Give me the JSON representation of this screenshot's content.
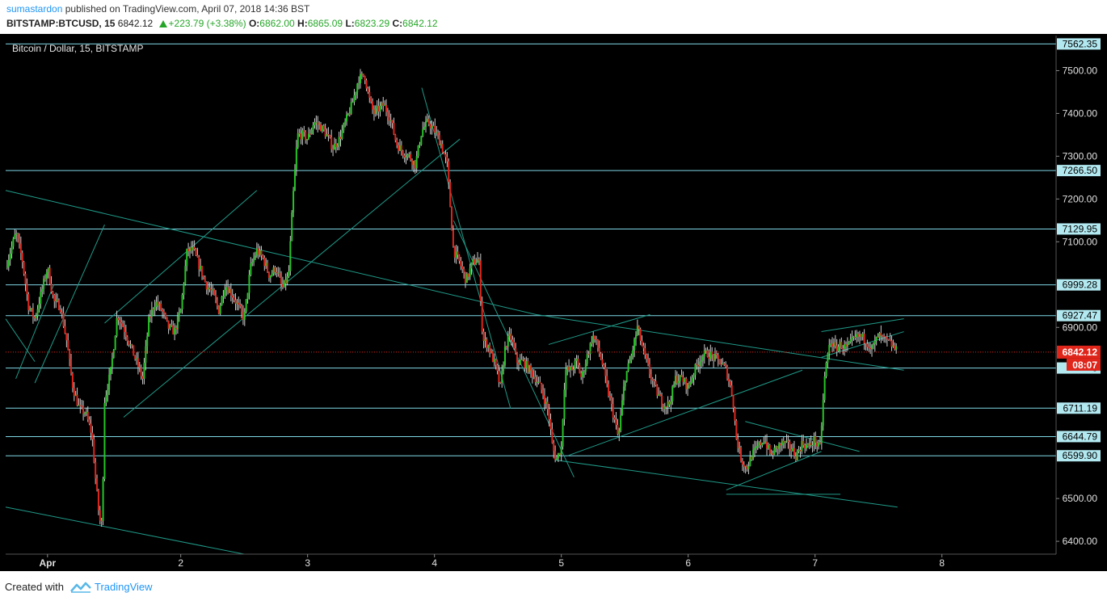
{
  "header": {
    "author": "sumastardon",
    "published_text": "published on TradingView.com, April 07, 2018 14:36 BST",
    "symbol": "BITSTAMP:BTCUSD, 15",
    "last_price": "6842.12",
    "change": "+223.79 (+3.38%)",
    "open_label": "O:",
    "open": "6862.00",
    "high_label": "H:",
    "high": "6865.09",
    "low_label": "L:",
    "low": "6823.29",
    "close_label": "C:",
    "close": "6842.12"
  },
  "footer": {
    "created_with": "Created with",
    "brand": "TradingView"
  },
  "colors": {
    "background": "#000000",
    "up": "#26c526",
    "down": "#e0251b",
    "wick": "#cccccc",
    "hline": "#7fd8e6",
    "trendline": "#1f9a88",
    "price_line": "#e0251b",
    "price_badge": "#e0251b"
  },
  "chart_data": {
    "type": "candlestick",
    "title": "Bitcoin / Dollar, 15, BITSTAMP",
    "x_ticks": [
      "Apr",
      "2",
      "3",
      "4",
      "5",
      "6",
      "7",
      "8"
    ],
    "y_ticks": [
      "7500.00",
      "7400.00",
      "7300.00",
      "7200.00",
      "7100.00",
      "6900.00",
      "6500.00",
      "6400.00"
    ],
    "ylim": [
      6370,
      7582
    ],
    "xlim_days": [
      0.62,
      8.9
    ],
    "grid": false,
    "horizontal_levels": [
      {
        "value": 7562.35,
        "label": "7562.35"
      },
      {
        "value": 7266.5,
        "label": "7266.50"
      },
      {
        "value": 7129.95,
        "label": "7129.95"
      },
      {
        "value": 6999.28,
        "label": "6999.28"
      },
      {
        "value": 6927.47,
        "label": "6927.47"
      },
      {
        "value": 6711.19,
        "label": "6711.19"
      },
      {
        "value": 6644.79,
        "label": "6644.79"
      },
      {
        "value": 6599.9,
        "label": "6599.90"
      },
      {
        "value": 6805,
        "label": "6"
      }
    ],
    "last_price": {
      "value": 6842.12,
      "label": "6842.12",
      "countdown": "08:07"
    },
    "price_path": [
      [
        0.62,
        7040
      ],
      [
        0.7,
        7120
      ],
      [
        0.75,
        7060
      ],
      [
        0.8,
        6950
      ],
      [
        0.85,
        6920
      ],
      [
        0.9,
        6980
      ],
      [
        0.95,
        7040
      ],
      [
        1.0,
        6960
      ],
      [
        1.05,
        6950
      ],
      [
        1.1,
        6870
      ],
      [
        1.15,
        6760
      ],
      [
        1.2,
        6710
      ],
      [
        1.25,
        6700
      ],
      [
        1.3,
        6650
      ],
      [
        1.33,
        6540
      ],
      [
        1.36,
        6450
      ],
      [
        1.38,
        6440
      ],
      [
        1.4,
        6730
      ],
      [
        1.45,
        6800
      ],
      [
        1.5,
        6930
      ],
      [
        1.55,
        6900
      ],
      [
        1.6,
        6860
      ],
      [
        1.65,
        6820
      ],
      [
        1.7,
        6780
      ],
      [
        1.75,
        6920
      ],
      [
        1.8,
        6960
      ],
      [
        1.85,
        6940
      ],
      [
        1.9,
        6900
      ],
      [
        1.95,
        6890
      ],
      [
        2.0,
        6940
      ],
      [
        2.05,
        7080
      ],
      [
        2.1,
        7080
      ],
      [
        2.15,
        7040
      ],
      [
        2.2,
        7000
      ],
      [
        2.25,
        6980
      ],
      [
        2.3,
        6940
      ],
      [
        2.35,
        7000
      ],
      [
        2.4,
        6980
      ],
      [
        2.45,
        6950
      ],
      [
        2.5,
        6920
      ],
      [
        2.55,
        7040
      ],
      [
        2.6,
        7080
      ],
      [
        2.65,
        7060
      ],
      [
        2.7,
        7020
      ],
      [
        2.75,
        7040
      ],
      [
        2.8,
        6990
      ],
      [
        2.85,
        7020
      ],
      [
        2.88,
        7180
      ],
      [
        2.92,
        7350
      ],
      [
        2.96,
        7350
      ],
      [
        3.0,
        7340
      ],
      [
        3.05,
        7380
      ],
      [
        3.1,
        7370
      ],
      [
        3.15,
        7350
      ],
      [
        3.2,
        7320
      ],
      [
        3.25,
        7340
      ],
      [
        3.3,
        7380
      ],
      [
        3.35,
        7420
      ],
      [
        3.4,
        7480
      ],
      [
        3.45,
        7490
      ],
      [
        3.48,
        7440
      ],
      [
        3.52,
        7400
      ],
      [
        3.56,
        7410
      ],
      [
        3.6,
        7420
      ],
      [
        3.65,
        7390
      ],
      [
        3.7,
        7330
      ],
      [
        3.75,
        7310
      ],
      [
        3.8,
        7300
      ],
      [
        3.85,
        7280
      ],
      [
        3.9,
        7360
      ],
      [
        3.95,
        7380
      ],
      [
        4.0,
        7360
      ],
      [
        4.05,
        7330
      ],
      [
        4.1,
        7280
      ],
      [
        4.12,
        7200
      ],
      [
        4.15,
        7080
      ],
      [
        4.2,
        7050
      ],
      [
        4.25,
        7010
      ],
      [
        4.3,
        7050
      ],
      [
        4.35,
        7060
      ],
      [
        4.38,
        6870
      ],
      [
        4.42,
        6860
      ],
      [
        4.48,
        6810
      ],
      [
        4.52,
        6760
      ],
      [
        4.56,
        6860
      ],
      [
        4.6,
        6880
      ],
      [
        4.65,
        6820
      ],
      [
        4.7,
        6820
      ],
      [
        4.75,
        6800
      ],
      [
        4.8,
        6780
      ],
      [
        4.85,
        6750
      ],
      [
        4.9,
        6700
      ],
      [
        4.93,
        6620
      ],
      [
        4.96,
        6590
      ],
      [
        5.0,
        6620
      ],
      [
        5.03,
        6800
      ],
      [
        5.08,
        6800
      ],
      [
        5.12,
        6820
      ],
      [
        5.16,
        6780
      ],
      [
        5.2,
        6830
      ],
      [
        5.25,
        6880
      ],
      [
        5.28,
        6860
      ],
      [
        5.32,
        6820
      ],
      [
        5.36,
        6760
      ],
      [
        5.4,
        6710
      ],
      [
        5.45,
        6640
      ],
      [
        5.5,
        6780
      ],
      [
        5.55,
        6830
      ],
      [
        5.6,
        6900
      ],
      [
        5.65,
        6840
      ],
      [
        5.7,
        6790
      ],
      [
        5.75,
        6750
      ],
      [
        5.8,
        6720
      ],
      [
        5.85,
        6720
      ],
      [
        5.9,
        6780
      ],
      [
        5.95,
        6780
      ],
      [
        6.0,
        6760
      ],
      [
        6.05,
        6800
      ],
      [
        6.1,
        6830
      ],
      [
        6.15,
        6840
      ],
      [
        6.2,
        6830
      ],
      [
        6.25,
        6820
      ],
      [
        6.3,
        6800
      ],
      [
        6.35,
        6740
      ],
      [
        6.38,
        6640
      ],
      [
        6.42,
        6590
      ],
      [
        6.46,
        6570
      ],
      [
        6.5,
        6600
      ],
      [
        6.55,
        6620
      ],
      [
        6.6,
        6640
      ],
      [
        6.65,
        6600
      ],
      [
        6.7,
        6620
      ],
      [
        6.75,
        6630
      ],
      [
        6.8,
        6620
      ],
      [
        6.85,
        6600
      ],
      [
        6.9,
        6630
      ],
      [
        6.95,
        6620
      ],
      [
        7.0,
        6640
      ],
      [
        7.02,
        6620
      ],
      [
        7.04,
        6620
      ],
      [
        7.08,
        6800
      ],
      [
        7.12,
        6870
      ],
      [
        7.16,
        6850
      ],
      [
        7.2,
        6860
      ],
      [
        7.25,
        6850
      ],
      [
        7.3,
        6870
      ],
      [
        7.35,
        6880
      ],
      [
        7.4,
        6870
      ],
      [
        7.45,
        6850
      ],
      [
        7.5,
        6880
      ],
      [
        7.55,
        6870
      ],
      [
        7.6,
        6860
      ],
      [
        7.65,
        6842
      ]
    ],
    "trendlines": [
      [
        [
          0.62,
          7220
        ],
        [
          4.8,
          6930
        ],
        [
          7.7,
          6800
        ]
      ],
      [
        [
          0.62,
          6480
        ],
        [
          2.5,
          6370
        ]
      ],
      [
        [
          0.62,
          6920
        ],
        [
          0.85,
          6820
        ]
      ],
      [
        [
          0.85,
          6770
        ],
        [
          1.4,
          7140
        ]
      ],
      [
        [
          0.7,
          6780
        ],
        [
          1.0,
          7000
        ]
      ],
      [
        [
          1.4,
          6910
        ],
        [
          2.6,
          7220
        ]
      ],
      [
        [
          1.55,
          6690
        ],
        [
          4.2,
          7340
        ]
      ],
      [
        [
          3.9,
          7460
        ],
        [
          4.6,
          6710
        ]
      ],
      [
        [
          4.15,
          7150
        ],
        [
          5.1,
          6550
        ]
      ],
      [
        [
          4.95,
          6590
        ],
        [
          7.65,
          6480
        ]
      ],
      [
        [
          5.05,
          6600
        ],
        [
          6.9,
          6800
        ]
      ],
      [
        [
          4.9,
          6860
        ],
        [
          5.7,
          6930
        ]
      ],
      [
        [
          6.3,
          6520
        ],
        [
          7.05,
          6610
        ]
      ],
      [
        [
          6.45,
          6680
        ],
        [
          7.35,
          6610
        ]
      ],
      [
        [
          6.3,
          6510
        ],
        [
          7.2,
          6510
        ]
      ],
      [
        [
          7.05,
          6890
        ],
        [
          7.7,
          6920
        ]
      ],
      [
        [
          7.05,
          6830
        ],
        [
          7.7,
          6890
        ]
      ]
    ]
  }
}
